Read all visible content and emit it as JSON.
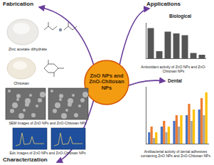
{
  "diagram": {
    "center": "ZnO NPs and ZnO-Chitosan NPs",
    "left": {
      "fabrication": {
        "heading": "Fabrication",
        "items": [
          "Zinc acetate dihydrate",
          "Chitosan"
        ]
      },
      "characterization": {
        "heading": "Characterization",
        "items": [
          "SEM Images of ZnO NPs and ZnO-Chitosan NPs",
          "Edx Images of ZnO NPs and ZnO-Chitosan NPs"
        ]
      }
    },
    "right": {
      "heading": "Applications",
      "biological": {
        "heading": "Biological",
        "caption": "Antioxidant activity of ZnO NPs and ZnO-Chitosan NPs"
      },
      "dental": {
        "heading": "Dental",
        "caption": "Antibacterial activity of dental adhesives containing ZnO NPs and ZnO-Chitosan NPs"
      }
    }
  },
  "chart_data": [
    {
      "type": "bar",
      "categories": [
        null,
        null,
        null,
        null,
        null,
        null,
        null
      ],
      "values": [
        85,
        20,
        75,
        70,
        65,
        15,
        10
      ],
      "color": "#555555",
      "ylim": [
        0,
        100
      ],
      "tick_labels": false,
      "grid": false
    },
    {
      "type": "bar",
      "categories": [
        null,
        null,
        null,
        null,
        null
      ],
      "series": [
        {
          "color": "#4472c4",
          "values": [
            2,
            3,
            4,
            5,
            6
          ]
        },
        {
          "color": "#ed7d31",
          "values": [
            3,
            4,
            5,
            7,
            8
          ]
        },
        {
          "color": "#a5a5a5",
          "values": [
            1,
            2,
            3,
            4,
            5
          ]
        },
        {
          "color": "#ffc000",
          "values": [
            2,
            3,
            5,
            6,
            9
          ]
        }
      ],
      "ylim": [
        0,
        10
      ],
      "tick_labels": false,
      "grid": false
    }
  ]
}
